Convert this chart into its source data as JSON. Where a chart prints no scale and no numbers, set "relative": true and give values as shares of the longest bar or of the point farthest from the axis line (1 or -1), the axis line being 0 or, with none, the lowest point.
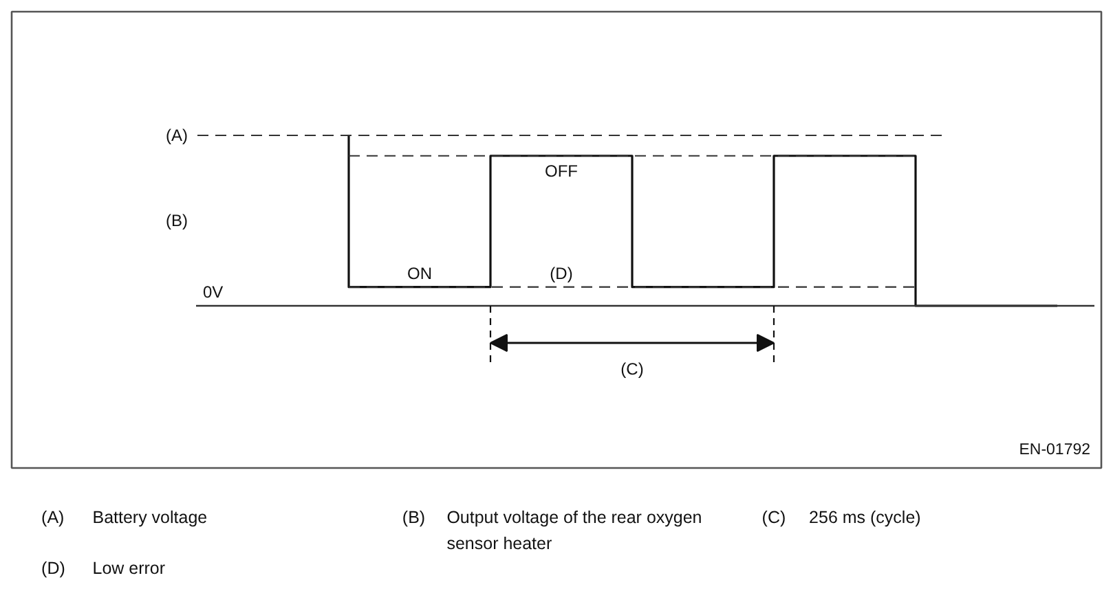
{
  "chart_data": {
    "type": "step",
    "relative": true,
    "categories": [
      null,
      null,
      null,
      null,
      null,
      null
    ],
    "series": [
      {
        "name": "(B)",
        "color": "#111111",
        "values": [
          1,
          0.11,
          0.88,
          0.11,
          0.88,
          0
        ]
      }
    ],
    "ref_lines": [
      {
        "axis": "y",
        "value": 1,
        "label": "(A)",
        "line_style": "dashed",
        "color": "#333333"
      },
      {
        "axis": "y",
        "value": 0.88,
        "line_style": "dashed",
        "color": "#333333"
      },
      {
        "axis": "y",
        "value": 0.11,
        "label": "(D)",
        "line_style": "dashed",
        "color": "#333333"
      },
      {
        "axis": "y",
        "value": 0,
        "label": "0V",
        "line_style": "solid",
        "color": "#333333"
      }
    ],
    "annotations": [
      {
        "text": "ON",
        "y": 0.11
      },
      {
        "text": "OFF",
        "y": 0.88
      },
      "(C)",
      "EN-01792",
      "(A)",
      "Battery voltage",
      "(B)",
      "Output voltage of the rear oxygen sensor heater",
      "(C)",
      "256 ms (cycle)",
      "(D)",
      "Low error"
    ]
  }
}
